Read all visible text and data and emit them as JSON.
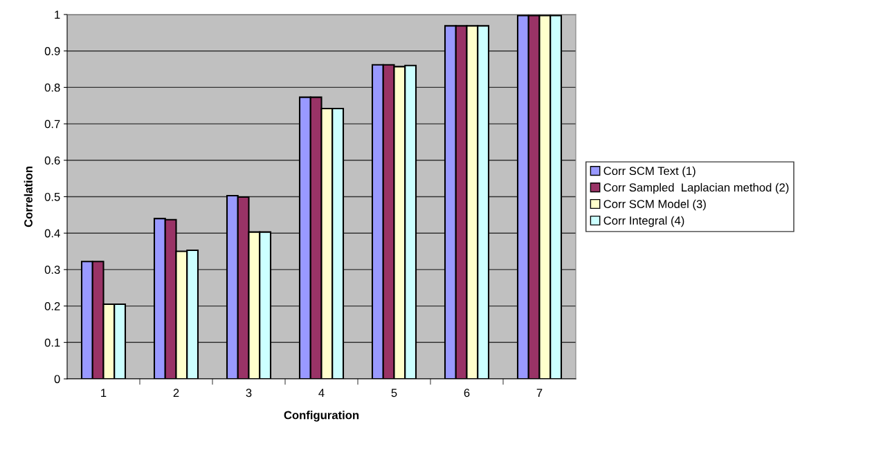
{
  "chart_data": {
    "type": "bar",
    "xlabel": "Configuration",
    "ylabel": "Correlation",
    "categories": [
      "1",
      "2",
      "3",
      "4",
      "5",
      "6",
      "7"
    ],
    "series": [
      {
        "name": "Corr SCM Text (1)",
        "color": "#9999ff",
        "values": [
          0.322,
          0.44,
          0.503,
          0.773,
          0.862,
          0.969,
          0.997
        ]
      },
      {
        "name": "Corr Sampled  Laplacian method (2)",
        "color": "#993366",
        "values": [
          0.322,
          0.437,
          0.499,
          0.773,
          0.862,
          0.969,
          0.997
        ]
      },
      {
        "name": "Corr SCM Model (3)",
        "color": "#ffffcc",
        "values": [
          0.205,
          0.35,
          0.403,
          0.742,
          0.857,
          0.969,
          0.997
        ]
      },
      {
        "name": "Corr Integral (4)",
        "color": "#ccffff",
        "values": [
          0.205,
          0.353,
          0.403,
          0.742,
          0.86,
          0.969,
          0.997
        ]
      }
    ],
    "ylim": [
      0,
      1
    ],
    "yticks": [
      0,
      0.1,
      0.2,
      0.3,
      0.4,
      0.5,
      0.6,
      0.7,
      0.8,
      0.9,
      1
    ],
    "grid": "y",
    "legend": "right"
  }
}
